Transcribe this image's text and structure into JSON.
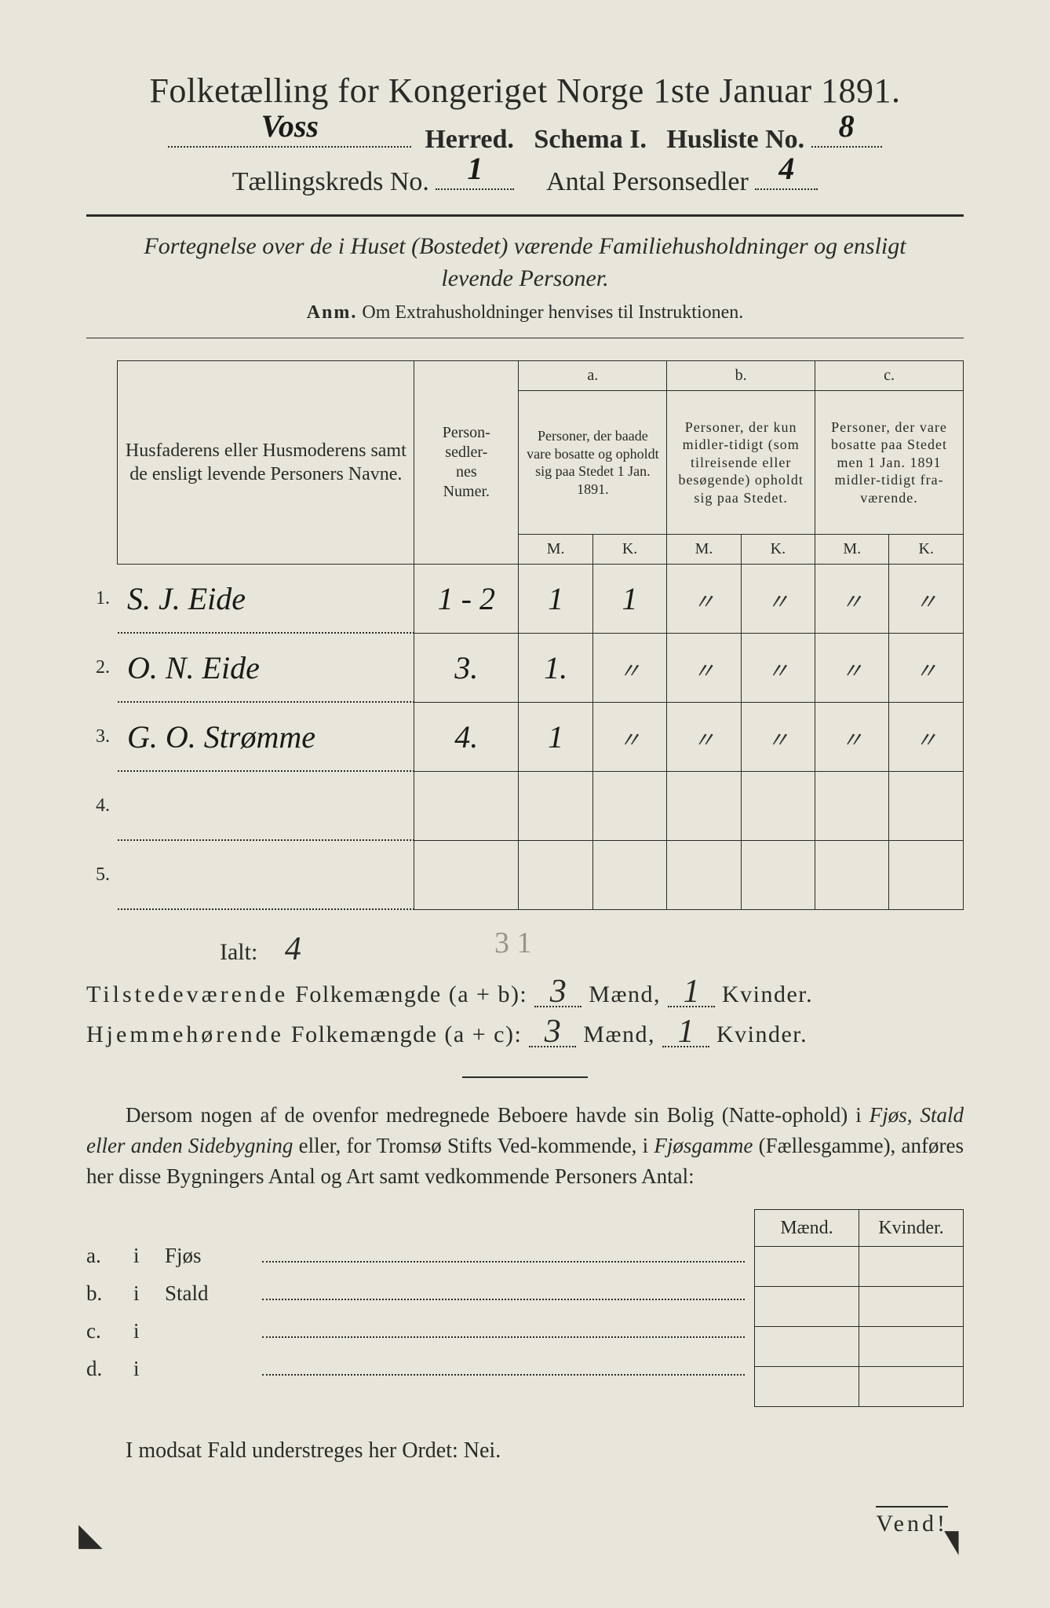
{
  "colors": {
    "paper": "#e8e5da",
    "ink": "#2a2a28",
    "handwriting": "#1a1a18",
    "pencil": "#9a9488"
  },
  "header": {
    "title": "Folketælling for Kongeriget Norge 1ste Januar 1891.",
    "herred_fill": "Voss",
    "herred_label": "Herred.",
    "schema_label": "Schema I.",
    "husliste_label": "Husliste No.",
    "husliste_no": "8",
    "kreds_label": "Tællingskreds No.",
    "kreds_no": "1",
    "antal_label": "Antal Personsedler",
    "antal_val": "4"
  },
  "subtitle": {
    "line1": "Fortegnelse over de i Huset (Bostedet) værende Familiehusholdninger og ensligt",
    "line2": "levende Personer.",
    "anm_label": "Anm.",
    "anm_text": "Om Extrahusholdninger henvises til Instruktionen."
  },
  "table": {
    "head": {
      "names": "Husfaderens eller Husmoderens samt de ensligt levende Personers Navne.",
      "numer": "Person-\nsedler-\nnes\nNumer.",
      "a_label": "a.",
      "a_text": "Personer, der baade vare bosatte og opholdt sig paa Stedet 1 Jan. 1891.",
      "b_label": "b.",
      "b_text": "Personer, der kun midler-tidigt (som tilreisende eller besøgende) opholdt sig paa Stedet.",
      "c_label": "c.",
      "c_text": "Personer, der vare bosatte paa Stedet men 1 Jan. 1891 midler-tidigt fra-værende.",
      "M": "M.",
      "K": "K."
    },
    "rows": [
      {
        "n": "1.",
        "name": "S. J. Eide",
        "num": "1 - 2",
        "aM": "1",
        "aK": "1",
        "bM": "〃",
        "bK": "〃",
        "cM": "〃",
        "cK": "〃"
      },
      {
        "n": "2.",
        "name": "O. N. Eide",
        "num": "3.",
        "aM": "1.",
        "aK": "〃",
        "bM": "〃",
        "bK": "〃",
        "cM": "〃",
        "cK": "〃"
      },
      {
        "n": "3.",
        "name": "G. O. Strømme",
        "num": "4.",
        "aM": "1",
        "aK": "〃",
        "bM": "〃",
        "bK": "〃",
        "cM": "〃",
        "cK": "〃"
      },
      {
        "n": "4.",
        "name": "",
        "num": "",
        "aM": "",
        "aK": "",
        "bM": "",
        "bK": "",
        "cM": "",
        "cK": ""
      },
      {
        "n": "5.",
        "name": "",
        "num": "",
        "aM": "",
        "aK": "",
        "bM": "",
        "bK": "",
        "cM": "",
        "cK": ""
      }
    ]
  },
  "totals": {
    "ialt_label": "Ialt:",
    "ialt_val": "4",
    "pencil_note": "3  1",
    "tilstede_label": "Tilstedeværende Folkemængde (a + b):",
    "tilstede_m": "3",
    "tilstede_k": "1",
    "hjemme_label": "Hjemmehørende Folkemængde (a + c):",
    "hjemme_m": "3",
    "hjemme_k": "1",
    "maend": "Mænd,",
    "kvinder": "Kvinder."
  },
  "para": {
    "text1": "Dersom nogen af de ovenfor medregnede Beboere havde sin Bolig (Natte-ophold) i ",
    "ital1": "Fjøs, Stald eller anden Sidebygning",
    "text2": " eller, for Tromsø Stifts Ved-kommende, i ",
    "ital2": "Fjøsgamme",
    "text3": " (Fællesgamme), anføres her disse Bygningers Antal og Art samt vedkommende Personers Antal:"
  },
  "lower": {
    "head_m": "Mænd.",
    "head_k": "Kvinder.",
    "rows": [
      {
        "lab": "a.",
        "i": "i",
        "txt": "Fjøs"
      },
      {
        "lab": "b.",
        "i": "i",
        "txt": "Stald"
      },
      {
        "lab": "c.",
        "i": "i",
        "txt": ""
      },
      {
        "lab": "d.",
        "i": "i",
        "txt": ""
      }
    ]
  },
  "nei": "I modsat Fald understreges her Ordet: Nei.",
  "vend": "Vend!"
}
